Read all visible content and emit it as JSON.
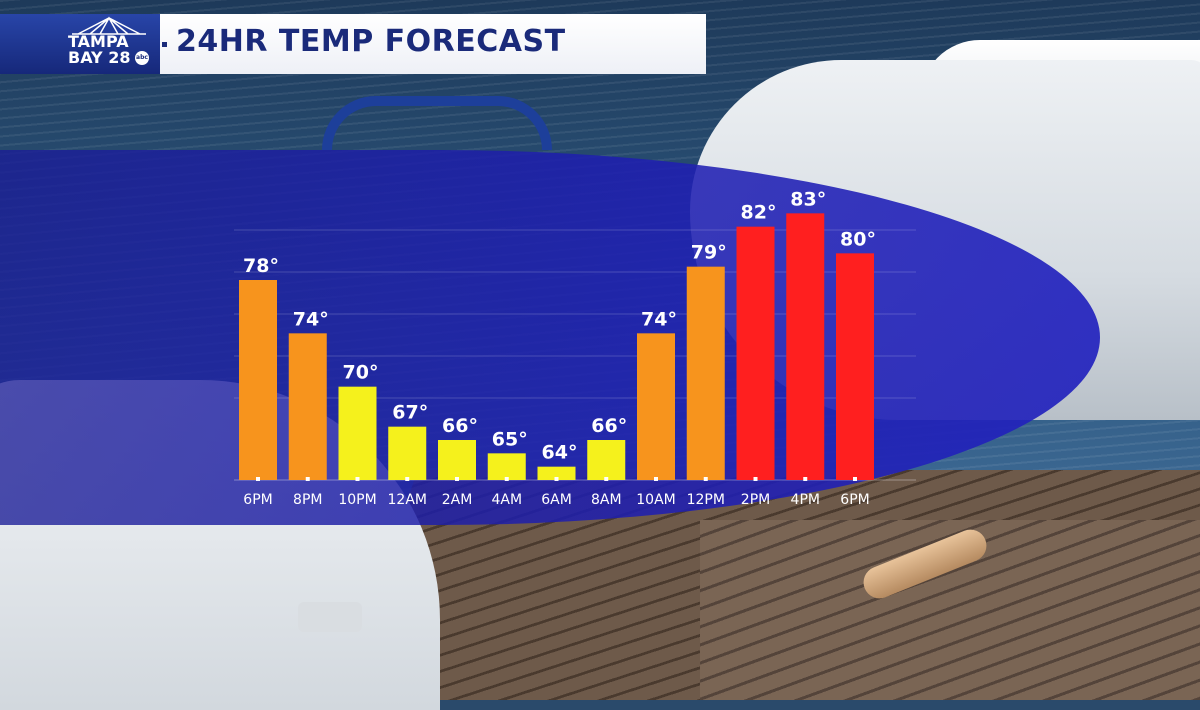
{
  "header": {
    "title": "24HR TEMP FORECAST",
    "logo": {
      "line1": "TAMPA",
      "line2": "BAY 28",
      "network_badge": "abc"
    }
  },
  "colors": {
    "warm": "#f7941d",
    "mild": "#f5f11c",
    "hot": "#ff1f1f",
    "panel": "#1e1fae",
    "title_text": "#1a2a7a"
  },
  "chart_data": {
    "type": "bar",
    "title": "24HR TEMP FORECAST",
    "xlabel": "",
    "ylabel": "",
    "categories": [
      "6PM",
      "8PM",
      "10PM",
      "12AM",
      "2AM",
      "4AM",
      "6AM",
      "8AM",
      "10AM",
      "12PM",
      "2PM",
      "4PM",
      "6PM"
    ],
    "values": [
      78,
      74,
      70,
      67,
      66,
      65,
      64,
      66,
      74,
      79,
      82,
      83,
      80
    ],
    "value_labels": [
      "78°",
      "74°",
      "70°",
      "67°",
      "66°",
      "65°",
      "64°",
      "66°",
      "74°",
      "79°",
      "82°",
      "83°",
      "80°"
    ],
    "bar_colors": [
      "#f7941d",
      "#f7941d",
      "#f5f11c",
      "#f5f11c",
      "#f5f11c",
      "#f5f11c",
      "#f5f11c",
      "#f5f11c",
      "#f7941d",
      "#f7941d",
      "#ff1f1f",
      "#ff1f1f",
      "#ff1f1f"
    ],
    "ylim": [
      63,
      84
    ],
    "grid": true,
    "legend": "none"
  }
}
